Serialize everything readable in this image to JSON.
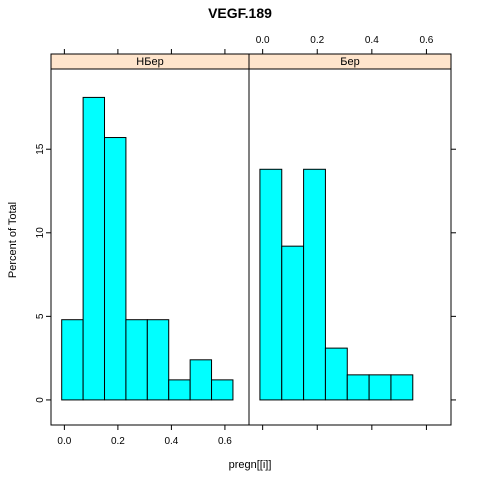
{
  "chart_data": {
    "type": "bar",
    "title": "VEGF.189",
    "xlabel": "pregn[[i]]",
    "ylabel": "Percent of Total",
    "xlim": [
      -0.05,
      0.69
    ],
    "ylim": [
      -1.5,
      19.8
    ],
    "x_ticks": [
      0.0,
      0.2,
      0.4,
      0.6
    ],
    "x_tick_labels": [
      "0.0",
      "0.2",
      "0.4",
      "0.6"
    ],
    "y_ticks": [
      0,
      5,
      10,
      15
    ],
    "y_tick_labels": [
      "0",
      "5",
      "10",
      "15"
    ],
    "grid": false,
    "colors": {
      "bar_fill": "#00ffff",
      "strip_fill": "#ffe5cc"
    },
    "panels": [
      {
        "strip": "НБер",
        "bin_edges": [
          -0.01,
          0.07,
          0.15,
          0.23,
          0.31,
          0.39,
          0.47,
          0.55,
          0.63
        ],
        "values": [
          4.8,
          18.1,
          15.7,
          4.8,
          4.8,
          1.2,
          2.4,
          1.2
        ]
      },
      {
        "strip": "Бер",
        "bin_edges": [
          -0.01,
          0.07,
          0.15,
          0.23,
          0.31,
          0.39,
          0.47,
          0.55
        ],
        "values": [
          13.8,
          9.2,
          13.8,
          3.1,
          1.5,
          1.5,
          1.5
        ]
      }
    ]
  }
}
